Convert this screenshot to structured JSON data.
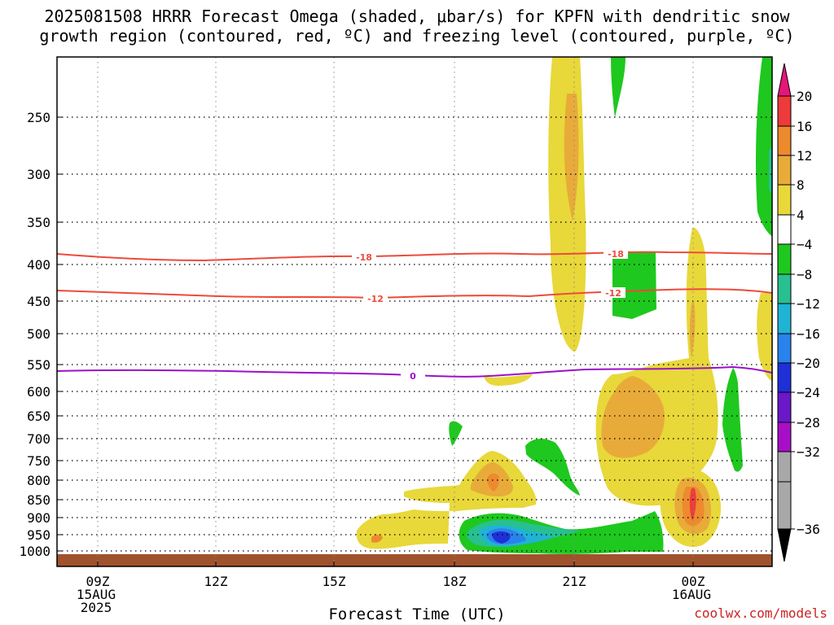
{
  "chart_data": {
    "type": "contour",
    "title_line1": "2025081508 HRRR Forecast Omega (shaded, μbar/s) for KPFN with dendritic snow",
    "title_line2": "growth region (contoured, red, ºC) and freezing level (contoured, purple, ºC)",
    "xlabel": "Forecast Time (UTC)",
    "ylabel": "",
    "x_ticks": [
      {
        "label": "09Z",
        "sub": [
          "15AUG",
          "2025"
        ]
      },
      {
        "label": "12Z",
        "sub": []
      },
      {
        "label": "15Z",
        "sub": []
      },
      {
        "label": "18Z",
        "sub": []
      },
      {
        "label": "21Z",
        "sub": []
      },
      {
        "label": "00Z",
        "sub": [
          "16AUG"
        ]
      }
    ],
    "y_ticks": [
      "250",
      "300",
      "350",
      "400",
      "450",
      "500",
      "550",
      "600",
      "650",
      "700",
      "750",
      "800",
      "850",
      "900",
      "950",
      "1000"
    ],
    "y_scale": "log-pressure",
    "ylim": [
      200,
      1030
    ],
    "grid": true,
    "colorbar": {
      "labels": [
        "20",
        "16",
        "12",
        "8",
        "4",
        "−4",
        "−8",
        "−12",
        "−16",
        "−20",
        "−24",
        "−28",
        "−32",
        "−36"
      ],
      "colors": [
        "#e6157a",
        "#ee3a3a",
        "#ee8a2e",
        "#e8ab3a",
        "#e8d83a",
        "#ffffff",
        "#1ec81e",
        "#28c090",
        "#20b4d4",
        "#2a82ec",
        "#2030d8",
        "#6a18c8",
        "#a80ec8",
        "#a8a8a8",
        "#000000"
      ]
    },
    "contours": [
      {
        "name": "-18",
        "color": "#ee4a3a",
        "level_mb": 395
      },
      {
        "name": "-12",
        "color": "#ee4a3a",
        "level_mb": 445
      },
      {
        "name": "0",
        "color": "#9a10c8",
        "level_mb": 570
      }
    ],
    "omega_colors": {
      "yellow": "#e8d83a",
      "gold": "#e8ab3a",
      "orange": "#ee8a2e",
      "red": "#ee3a3a",
      "green": "#1ec81e",
      "teal": "#28c090",
      "cyan": "#20b4d4",
      "blue": "#2a82ec",
      "navy": "#2030d8"
    },
    "ground_color": "#a0522d"
  },
  "watermark": "coolwx.com/models"
}
